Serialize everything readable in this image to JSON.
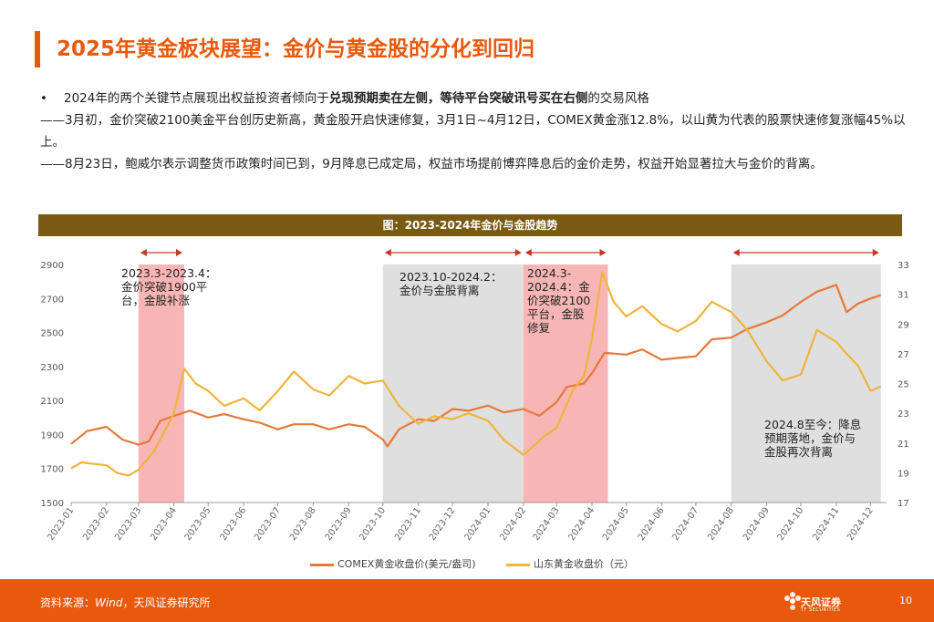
{
  "header": {
    "title": "2025年黄金板块展望：金价与黄金股的分化到回归",
    "accent_color": "#e8590c"
  },
  "body": {
    "bullet_lead": "2024年的两个关键节点展现出权益投资者倾向于",
    "bullet_bold": "兑现预期卖在左侧，等待平台突破讯号买在右侧",
    "bullet_tail": "的交易风格",
    "para1": "——3月初，金价突破2100美金平台创历史新高，黄金股开启快速修复，3月1日~4月12日，COMEX黄金涨12.8%，以山黄为代表的股票快速修复涨幅45%以上。",
    "para2": "——8月23日，鲍威尔表示调整货币政策时间已到，9月降息已成定局，权益市场提前博弈降息后的金价走势，权益开始显著拉大与金价的背离。"
  },
  "chart_header": {
    "title": "图：2023-2024年金价与金股趋势",
    "bg_color": "#7a5a12"
  },
  "chart_data": {
    "type": "line",
    "title": "图：2023-2024年金价与金股趋势",
    "x_tick_labels": [
      "2023-01",
      "2023-02",
      "2023-03",
      "2023-04",
      "2023-05",
      "2023-06",
      "2023-07",
      "2023-08",
      "2023-09",
      "2023-10",
      "2023-11",
      "2023-12",
      "2024-01",
      "2024-02",
      "2024-03",
      "2024-04",
      "2024-05",
      "2024-06",
      "2024-07",
      "2024-08",
      "2024-09",
      "2024-10",
      "2024-11",
      "2024-12"
    ],
    "y_left": {
      "ylim": [
        1500,
        2900
      ],
      "ticks": [
        1500,
        1700,
        1900,
        2100,
        2300,
        2500,
        2700,
        2900
      ]
    },
    "y_right": {
      "ylim": [
        17,
        33
      ],
      "ticks": [
        17,
        19,
        21,
        23,
        25,
        27,
        29,
        31,
        33
      ]
    },
    "series": [
      {
        "name": "COMEX黄金收盘价(美元/盎司)",
        "axis": "left",
        "color": "#e5793a",
        "points": [
          [
            "2023-01",
            1845
          ],
          [
            "2023-01-15",
            1920
          ],
          [
            "2023-02",
            1945
          ],
          [
            "2023-02-15",
            1870
          ],
          [
            "2023-03",
            1840
          ],
          [
            "2023-03-10",
            1860
          ],
          [
            "2023-03-20",
            1980
          ],
          [
            "2023-04",
            2010
          ],
          [
            "2023-04-15",
            2040
          ],
          [
            "2023-05",
            2000
          ],
          [
            "2023-05-15",
            2020
          ],
          [
            "2023-06",
            1990
          ],
          [
            "2023-06-15",
            1970
          ],
          [
            "2023-07",
            1930
          ],
          [
            "2023-07-15",
            1960
          ],
          [
            "2023-08",
            1960
          ],
          [
            "2023-08-15",
            1930
          ],
          [
            "2023-09",
            1960
          ],
          [
            "2023-09-15",
            1945
          ],
          [
            "2023-10",
            1870
          ],
          [
            "2023-10-05",
            1830
          ],
          [
            "2023-10-15",
            1930
          ],
          [
            "2023-11",
            1990
          ],
          [
            "2023-11-15",
            1980
          ],
          [
            "2023-12",
            2050
          ],
          [
            "2023-12-15",
            2040
          ],
          [
            "2024-01",
            2070
          ],
          [
            "2024-01-15",
            2030
          ],
          [
            "2024-02",
            2050
          ],
          [
            "2024-02-15",
            2010
          ],
          [
            "2024-03",
            2090
          ],
          [
            "2024-03-10",
            2180
          ],
          [
            "2024-03-25",
            2200
          ],
          [
            "2024-04",
            2260
          ],
          [
            "2024-04-12",
            2380
          ],
          [
            "2024-05",
            2370
          ],
          [
            "2024-05-15",
            2400
          ],
          [
            "2024-06",
            2340
          ],
          [
            "2024-06-15",
            2350
          ],
          [
            "2024-07",
            2360
          ],
          [
            "2024-07-15",
            2460
          ],
          [
            "2024-08",
            2470
          ],
          [
            "2024-08-15",
            2520
          ],
          [
            "2024-09",
            2560
          ],
          [
            "2024-09-15",
            2600
          ],
          [
            "2024-10",
            2680
          ],
          [
            "2024-10-15",
            2740
          ],
          [
            "2024-11",
            2780
          ],
          [
            "2024-11-10",
            2620
          ],
          [
            "2024-11-20",
            2670
          ],
          [
            "2024-12",
            2700
          ],
          [
            "2024-12-10",
            2720
          ]
        ]
      },
      {
        "name": "山东黄金收盘价（元）",
        "axis": "right",
        "color": "#f0b43c",
        "points": [
          [
            "2023-01",
            19.3
          ],
          [
            "2023-01-10",
            19.7
          ],
          [
            "2023-02",
            19.5
          ],
          [
            "2023-02-10",
            19.0
          ],
          [
            "2023-02-20",
            18.8
          ],
          [
            "2023-03",
            19.2
          ],
          [
            "2023-03-15",
            20.5
          ],
          [
            "2023-04",
            23.0
          ],
          [
            "2023-04-10",
            26.0
          ],
          [
            "2023-04-20",
            25.0
          ],
          [
            "2023-05",
            24.5
          ],
          [
            "2023-05-15",
            23.5
          ],
          [
            "2023-06",
            24.0
          ],
          [
            "2023-06-15",
            23.2
          ],
          [
            "2023-07",
            24.5
          ],
          [
            "2023-07-15",
            25.8
          ],
          [
            "2023-08",
            24.6
          ],
          [
            "2023-08-15",
            24.2
          ],
          [
            "2023-09",
            25.5
          ],
          [
            "2023-09-15",
            25.0
          ],
          [
            "2023-10",
            25.2
          ],
          [
            "2023-10-15",
            23.5
          ],
          [
            "2023-11",
            22.3
          ],
          [
            "2023-11-15",
            22.8
          ],
          [
            "2023-12",
            22.6
          ],
          [
            "2023-12-15",
            23.0
          ],
          [
            "2024-01",
            22.5
          ],
          [
            "2024-01-15",
            21.2
          ],
          [
            "2024-02",
            20.2
          ],
          [
            "2024-02-10",
            20.8
          ],
          [
            "2024-02-20",
            21.5
          ],
          [
            "2024-03",
            22.0
          ],
          [
            "2024-03-15",
            24.5
          ],
          [
            "2024-03-25",
            25.5
          ],
          [
            "2024-04",
            28.0
          ],
          [
            "2024-04-10",
            32.5
          ],
          [
            "2024-04-20",
            30.5
          ],
          [
            "2024-05",
            29.5
          ],
          [
            "2024-05-15",
            30.2
          ],
          [
            "2024-06",
            29.0
          ],
          [
            "2024-06-15",
            28.5
          ],
          [
            "2024-07",
            29.2
          ],
          [
            "2024-07-15",
            30.5
          ],
          [
            "2024-08",
            29.8
          ],
          [
            "2024-08-15",
            28.6
          ],
          [
            "2024-09",
            26.5
          ],
          [
            "2024-09-15",
            25.2
          ],
          [
            "2024-10",
            25.6
          ],
          [
            "2024-10-15",
            28.6
          ],
          [
            "2024-11",
            27.8
          ],
          [
            "2024-11-10",
            27.0
          ],
          [
            "2024-11-20",
            26.2
          ],
          [
            "2024-12",
            24.5
          ],
          [
            "2024-12-10",
            24.8
          ]
        ]
      }
    ],
    "highlight_bands": [
      {
        "from": "2023-03",
        "to": "2023-04-10",
        "color": "#f7a8a8",
        "label": "2023.3-2023.4：金价突破1900平台，金股补涨",
        "label_key": "band1"
      },
      {
        "from": "2023-10",
        "to": "2024-02",
        "color": "#d9d9d9",
        "label": "2023.10-2024.2：金价与金股背离",
        "label_key": "band2"
      },
      {
        "from": "2024-02",
        "to": "2024-04-15",
        "color": "#f7a8a8",
        "label": "2024.3-2024.4：金价突破2100平台，金股修复",
        "label_key": "band3"
      },
      {
        "from": "2024-08",
        "to": "2024-12-10",
        "color": "#d9d9d9",
        "label": "2024.8至今：降息预期落地，金价与金股再次背离",
        "label_key": "band4"
      }
    ],
    "grid": false,
    "legend_position": "bottom"
  },
  "annotations": {
    "band1": [
      "2023.3-2023.4：",
      "金价突破1900平",
      "台，金股补涨"
    ],
    "band2": [
      "2023.10-2024.2：",
      "金价与金股背离"
    ],
    "band3": [
      "2024.3-",
      "2024.4：金",
      "价突破2100",
      "平台，金股",
      "修复"
    ],
    "band4": [
      "2024.8至今：降息",
      "预期落地，金价与",
      "金股再次背离"
    ]
  },
  "footer": {
    "source_prefix": "资料来源：",
    "source_italic": "Wind",
    "source_suffix": "，天风证券研究所",
    "logo_text": "天风证券",
    "logo_sub": "TF SECURITIES",
    "page_number": "10",
    "bg_color": "#e8590c"
  }
}
